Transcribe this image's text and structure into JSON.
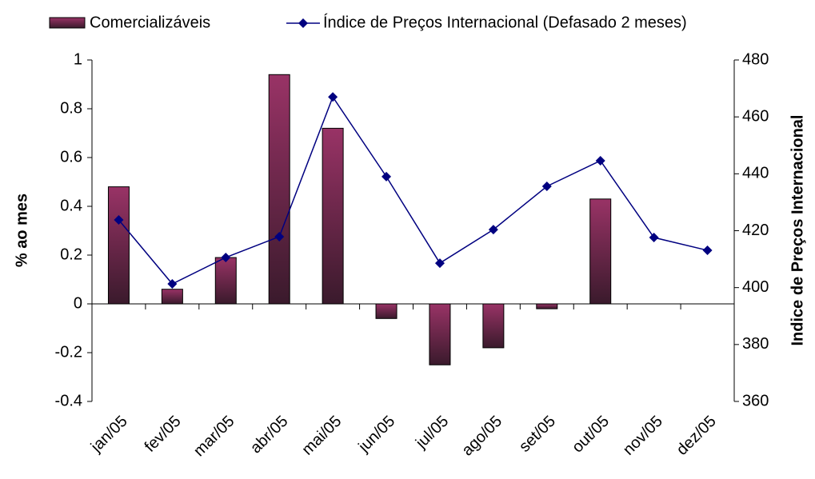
{
  "chart_data": {
    "type": "bar",
    "categories": [
      "jan/05",
      "fev/05",
      "mar/05",
      "abr/05",
      "mai/05",
      "jun/05",
      "jul/05",
      "ago/05",
      "set/05",
      "out/05",
      "nov/05",
      "dez/05"
    ],
    "series": [
      {
        "name": "Comercializáveis",
        "type": "bar",
        "color": "#993366",
        "values": [
          0.48,
          0.06,
          0.19,
          0.94,
          0.72,
          -0.06,
          -0.25,
          -0.18,
          -0.02,
          0.43,
          null,
          null
        ]
      },
      {
        "name": "Índice de Preços Internacional (Defasado 2 meses)",
        "type": "line",
        "axis": "y2",
        "color": "#000080",
        "values": [
          423.8,
          401.3,
          410.6,
          417.9,
          467,
          439,
          408.6,
          420.4,
          435.6,
          444.6,
          417.6,
          413.1
        ]
      }
    ],
    "ylabel": "% ao mes",
    "y2label": "Indice de Preços Internacional",
    "ylim": [
      -0.4,
      1
    ],
    "yticks": [
      -0.4,
      -0.2,
      0,
      0.2,
      0.4,
      0.6,
      0.8,
      1
    ],
    "y2lim": [
      360,
      480
    ],
    "y2ticks": [
      360,
      380,
      400,
      420,
      440,
      460,
      480
    ],
    "legend": "top"
  }
}
